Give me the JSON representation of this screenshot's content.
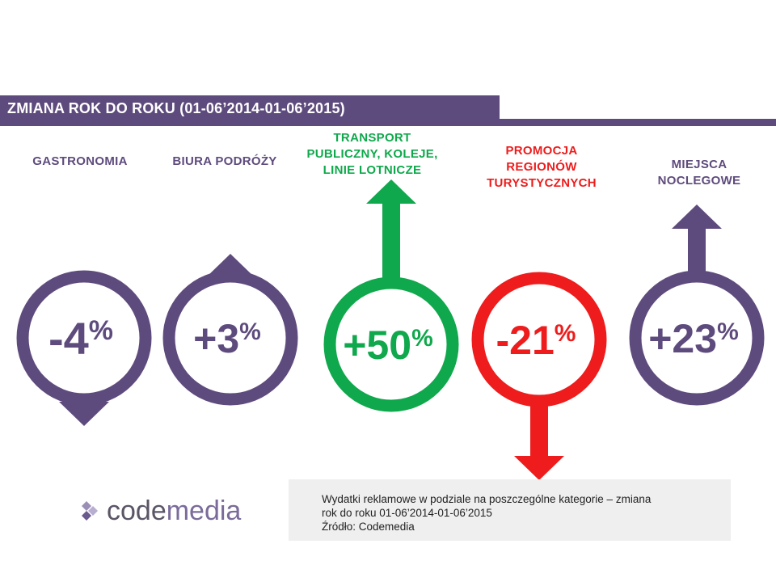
{
  "header": {
    "title": "ZMIANA ROK DO ROKU (01-06’2014-01-06’2015)"
  },
  "colors": {
    "purple": "#5e4b7d",
    "green": "#10a84c",
    "red": "#ee1c1c"
  },
  "chart_data": {
    "type": "bar",
    "title": "ZMIANA ROK DO ROKU (01-06’2014-01-06’2015)",
    "unit": "%",
    "categories": [
      "GASTRONOMIA",
      "BIURA PODRÓŻY",
      "TRANSPORT PUBLICZNY, KOLEJE, LINIE LOTNICZE",
      "PROMOCJA REGIONÓW TURYSTYCZNYCH",
      "MIEJSCA NOCLEGOWE"
    ],
    "values": [
      -4,
      3,
      50,
      -21,
      23
    ],
    "value_labels": [
      "-4",
      "+3",
      "+50",
      "-21",
      "+23"
    ],
    "category_colors": [
      "#5e4b7d",
      "#5e4b7d",
      "#10a84c",
      "#ee1c1c",
      "#5e4b7d"
    ]
  },
  "labels": [
    {
      "text": "GASTRONOMIA",
      "color": "#5e4b7d"
    },
    {
      "text": "BIURA PODRÓŻY",
      "color": "#5e4b7d"
    },
    {
      "text": "TRANSPORT\nPUBLICZNY, KOLEJE,\nLINIE LOTNICZE",
      "color": "#10a84c"
    },
    {
      "text": "PROMOCJA\nREGIONÓW\nTURYSTYCZNYCH",
      "color": "#ee1c1c"
    },
    {
      "text": "MIEJSCA\nNOCLEGOWE",
      "color": "#5e4b7d"
    }
  ],
  "source": {
    "logo": {
      "part1": "code",
      "part2": "media",
      "icon": "diamond-logo-icon"
    },
    "line1": "Wydatki reklamowe w podziale na poszczególne kategorie – zmiana",
    "line2": "rok do roku 01-06’2014-01-06’2015",
    "line3": "Źródło: Codemedia"
  }
}
